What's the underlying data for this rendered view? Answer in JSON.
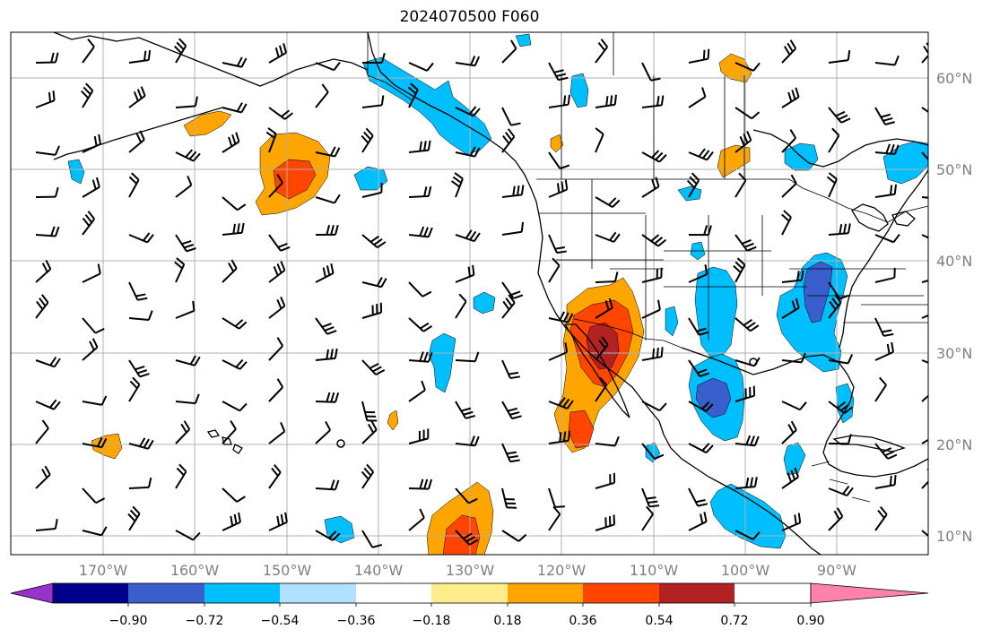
{
  "title": "2024070500 F060",
  "lat_labels": [
    "60°N",
    "50°N",
    "40°N",
    "30°N",
    "20°N",
    "10°N"
  ],
  "lon_labels": [
    "170°W",
    "160°W",
    "150°W",
    "140°W",
    "130°W",
    "120°W",
    "110°W",
    "100°W",
    "90°W"
  ],
  "colorbar": {
    "colors": [
      "#9932cc",
      "#00008b",
      "#3a5fcd",
      "#00bfff",
      "#b0e2ff",
      "#ffffff",
      "#ffec8b",
      "#ffa500",
      "#ff4500",
      "#b22222",
      "#ff82ab"
    ],
    "tick_labels": [
      "−0.90",
      "−0.72",
      "−0.54",
      "−0.36",
      "−0.18",
      "0.18",
      "0.36",
      "0.54",
      "0.72",
      "0.90"
    ],
    "levels": [
      -0.9,
      -0.72,
      -0.54,
      -0.36,
      -0.18,
      0.18,
      0.36,
      0.54,
      0.72,
      0.9
    ],
    "extend": "both"
  },
  "fill_colors": {
    "neg_light": "#b0e2ff",
    "neg_med": "#00bfff",
    "neg_strong": "#3a5fcd",
    "pos_light": "#ffec8b",
    "pos_med": "#ffa500",
    "pos_strong": "#ff4500",
    "pos_vstrong": "#b22222"
  }
}
